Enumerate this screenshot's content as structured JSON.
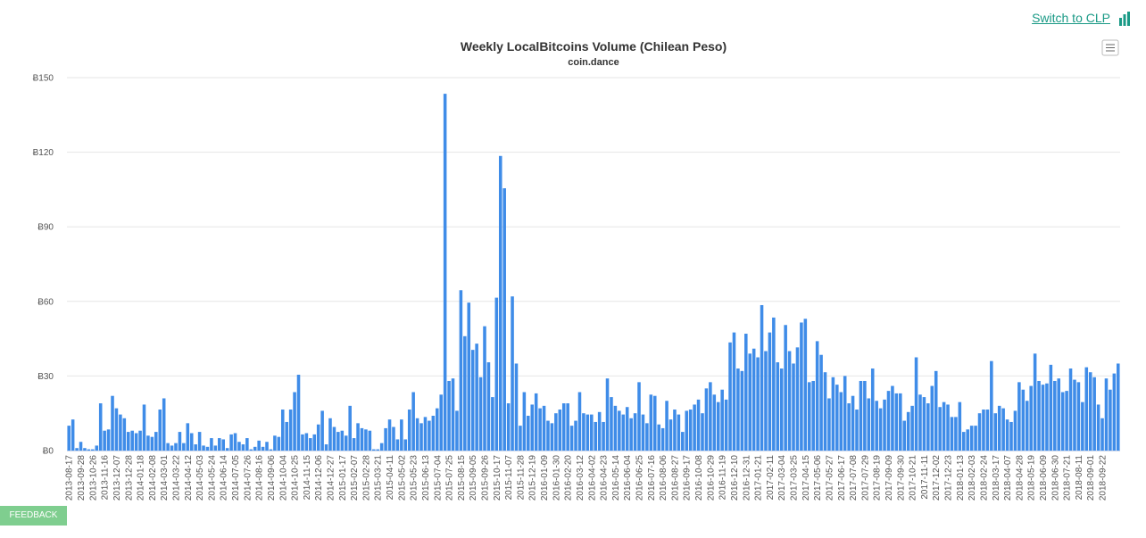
{
  "switch_link": "Switch to CLP",
  "feedback": "FEEDBACK",
  "chart_data": {
    "type": "bar",
    "title": "Weekly LocalBitcoins Volume (Chilean Peso)",
    "subtitle": "coin.dance",
    "color": "#3f8ce8",
    "grid": true,
    "ylim": [
      0,
      150
    ],
    "yticks": [
      {
        "value": 0,
        "label": "Ƀ0"
      },
      {
        "value": 30,
        "label": "Ƀ30"
      },
      {
        "value": 60,
        "label": "Ƀ60"
      },
      {
        "value": 90,
        "label": "Ƀ90"
      },
      {
        "value": 120,
        "label": "Ƀ120"
      },
      {
        "value": 150,
        "label": "Ƀ150"
      }
    ],
    "categories": [
      "2013-08-17",
      null,
      null,
      "2013-09-28",
      null,
      null,
      "2013-10-26",
      null,
      null,
      "2013-11-16",
      null,
      null,
      "2013-12-07",
      null,
      null,
      "2013-12-28",
      null,
      null,
      "2014-01-18",
      null,
      null,
      "2014-02-08",
      null,
      null,
      "2014-03-01",
      null,
      null,
      "2014-03-22",
      null,
      null,
      "2014-04-12",
      null,
      null,
      "2014-05-03",
      null,
      null,
      "2014-05-24",
      null,
      null,
      "2014-06-14",
      null,
      null,
      "2014-07-05",
      null,
      null,
      "2014-07-26",
      null,
      null,
      "2014-08-16",
      null,
      null,
      "2014-09-06",
      null,
      null,
      "2014-10-04",
      null,
      null,
      "2014-10-25",
      null,
      null,
      "2014-11-15",
      null,
      null,
      "2014-12-06",
      null,
      null,
      "2014-12-27",
      null,
      null,
      "2015-01-17",
      null,
      null,
      "2015-02-07",
      null,
      null,
      "2015-02-28",
      null,
      null,
      "2015-03-21",
      null,
      null,
      "2015-04-11",
      null,
      null,
      "2015-05-02",
      null,
      null,
      "2015-05-23",
      null,
      null,
      "2015-06-13",
      null,
      null,
      "2015-07-04",
      null,
      null,
      "2015-07-25",
      null,
      null,
      "2015-08-15",
      null,
      null,
      "2015-09-05",
      null,
      null,
      "2015-09-26",
      null,
      null,
      "2015-10-17",
      null,
      null,
      "2015-11-07",
      null,
      null,
      "2015-11-28",
      null,
      null,
      "2015-12-19",
      null,
      null,
      "2016-01-09",
      null,
      null,
      "2016-01-30",
      null,
      null,
      "2016-02-20",
      null,
      null,
      "2016-03-12",
      null,
      null,
      "2016-04-02",
      null,
      null,
      "2016-04-23",
      null,
      null,
      "2016-05-14",
      null,
      null,
      "2016-06-04",
      null,
      null,
      "2016-06-25",
      null,
      null,
      "2016-07-16",
      null,
      null,
      "2016-08-06",
      null,
      null,
      "2016-08-27",
      null,
      null,
      "2016-09-17",
      null,
      null,
      "2016-10-08",
      null,
      null,
      "2016-10-29",
      null,
      null,
      "2016-11-19",
      null,
      null,
      "2016-12-10",
      null,
      null,
      "2016-12-31",
      null,
      null,
      "2017-01-21",
      null,
      null,
      "2017-02-11",
      null,
      null,
      "2017-03-04",
      null,
      null,
      "2017-03-25",
      null,
      null,
      "2017-04-15",
      null,
      null,
      "2017-05-06",
      null,
      null,
      "2017-05-27",
      null,
      null,
      "2017-06-17",
      null,
      null,
      "2017-07-08",
      null,
      null,
      "2017-07-29",
      null,
      null,
      "2017-08-19",
      null,
      null,
      "2017-09-09",
      null,
      null,
      "2017-09-30",
      null,
      null,
      "2017-10-21",
      null,
      null,
      "2017-11-11",
      null,
      null,
      "2017-12-02",
      null,
      null,
      "2017-12-23",
      null,
      null,
      "2018-01-13",
      null,
      null,
      "2018-02-03",
      null,
      null,
      "2018-02-24",
      null,
      null,
      "2018-03-17",
      null,
      null,
      "2018-04-07",
      null,
      null,
      "2018-04-28",
      null,
      null,
      "2018-05-19",
      null,
      null,
      "2018-06-09",
      null,
      null,
      "2018-06-30",
      null,
      null,
      "2018-07-21",
      null,
      null,
      "2018-08-11",
      null,
      null,
      "2018-09-01",
      null,
      null,
      "2018-09-22",
      null,
      null,
      null,
      null
    ],
    "values": [
      10,
      12.5,
      1,
      3.5,
      1,
      0.5,
      0.5,
      2,
      19,
      8,
      8.5,
      22,
      17,
      14.5,
      13,
      7.5,
      8,
      7,
      8,
      18.5,
      6,
      5.5,
      7.5,
      16.5,
      21,
      3,
      2,
      3,
      7.5,
      3,
      11,
      7,
      2.5,
      7.5,
      2,
      1.5,
      5,
      2,
      5,
      4.5,
      1,
      6.5,
      7,
      3.5,
      2.5,
      5,
      0.5,
      1.5,
      4,
      1.5,
      3.5,
      0.5,
      6,
      5.5,
      16.5,
      11.5,
      16.5,
      23.5,
      30.5,
      6.5,
      7,
      5,
      6.5,
      10.5,
      16,
      2.5,
      13,
      9.5,
      7.5,
      8,
      6,
      18,
      5,
      11,
      9,
      8.5,
      8,
      0.5,
      0.5,
      3,
      9,
      12.5,
      9.5,
      4.5,
      12.5,
      4.5,
      16.5,
      23.5,
      13,
      11,
      13.5,
      12,
      14,
      17,
      22.5,
      143.5,
      28,
      29,
      16,
      64.5,
      46,
      59.5,
      40.5,
      43,
      29.5,
      50,
      35.5,
      21.5,
      61.5,
      118.5,
      105.5,
      19,
      62,
      35,
      10,
      23.5,
      14,
      18.5,
      23,
      17,
      18,
      12,
      11,
      15,
      16.5,
      19,
      19,
      10,
      12,
      23.5,
      15,
      14.5,
      14.5,
      11.5,
      15.5,
      11.5,
      29,
      21.5,
      18,
      16,
      14.5,
      17.5,
      13,
      15,
      27.5,
      14.5,
      11,
      22.5,
      22,
      10.5,
      9,
      20,
      12.5,
      16.5,
      14.5,
      7.5,
      16,
      16.5,
      18.5,
      20.5,
      15,
      25,
      27.5,
      22.5,
      19.5,
      24.5,
      20.5,
      43.5,
      47.5,
      33,
      32,
      47,
      39,
      41,
      37.5,
      58.5,
      40,
      47.5,
      53.5,
      35.5,
      33,
      50.5,
      40,
      35,
      41.5,
      51.5,
      53,
      27.5,
      28,
      44,
      38.5,
      31.5,
      21,
      29.5,
      26.5,
      23.5,
      30,
      19,
      22,
      16.5,
      28,
      28,
      21,
      33,
      20,
      17,
      20.5,
      24,
      26,
      23,
      23,
      12,
      15.5,
      18,
      37.5,
      22.5,
      21.5,
      19,
      26,
      32,
      17.5,
      19.5,
      18.5,
      13.5,
      13.5,
      19.5,
      7.5,
      8.5,
      10,
      10,
      15,
      16.5,
      16.5,
      36,
      15,
      18,
      17,
      12.5,
      11.5,
      16,
      27.5,
      24.5,
      20,
      26,
      39,
      28,
      26.5,
      27,
      34.5,
      28,
      29,
      23.5,
      24,
      33,
      28.5,
      27.5,
      19.5,
      33.5,
      31.5,
      29.5,
      18.5,
      13,
      29,
      24.5,
      31,
      35
    ]
  }
}
